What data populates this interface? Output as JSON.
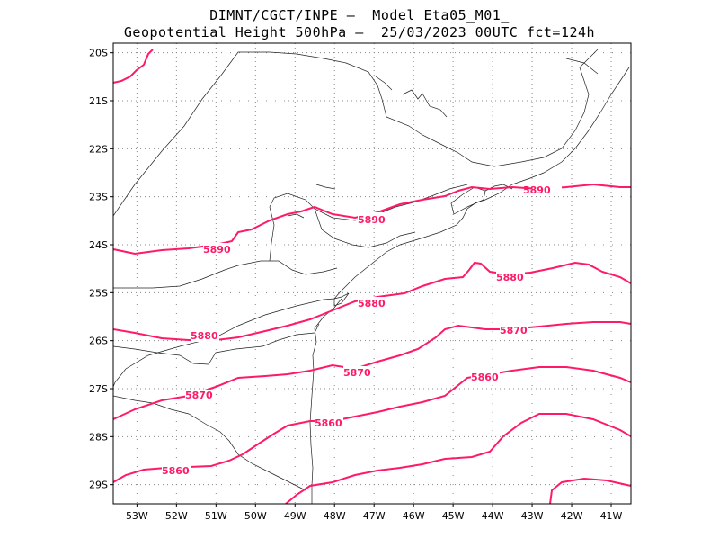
{
  "title": {
    "line1": "DIMNT/CGCT/INPE –  Model Eta05_M01_",
    "line2": "Geopotential Height 500hPa –  25/03/2023 00UTC fct=124h"
  },
  "map": {
    "projection": "lat-lon",
    "lon_range": [
      -53.6,
      -40.5
    ],
    "lat_range": [
      -29.4,
      -19.8
    ],
    "lon_ticks": [
      "53W",
      "52W",
      "51W",
      "50W",
      "49W",
      "48W",
      "47W",
      "46W",
      "45W",
      "44W",
      "43W",
      "42W",
      "41W"
    ],
    "lat_ticks": [
      "20S",
      "21S",
      "22S",
      "23S",
      "24S",
      "25S",
      "26S",
      "27S",
      "28S",
      "29S"
    ],
    "grid": "dotted",
    "coastline_color": "#000000",
    "contour_color": "#ff1a66"
  },
  "contour_labels": [
    "5890",
    "5890",
    "5890",
    "5880",
    "5880",
    "5880",
    "5870",
    "5870",
    "5870",
    "5860",
    "5860",
    "5860"
  ]
}
